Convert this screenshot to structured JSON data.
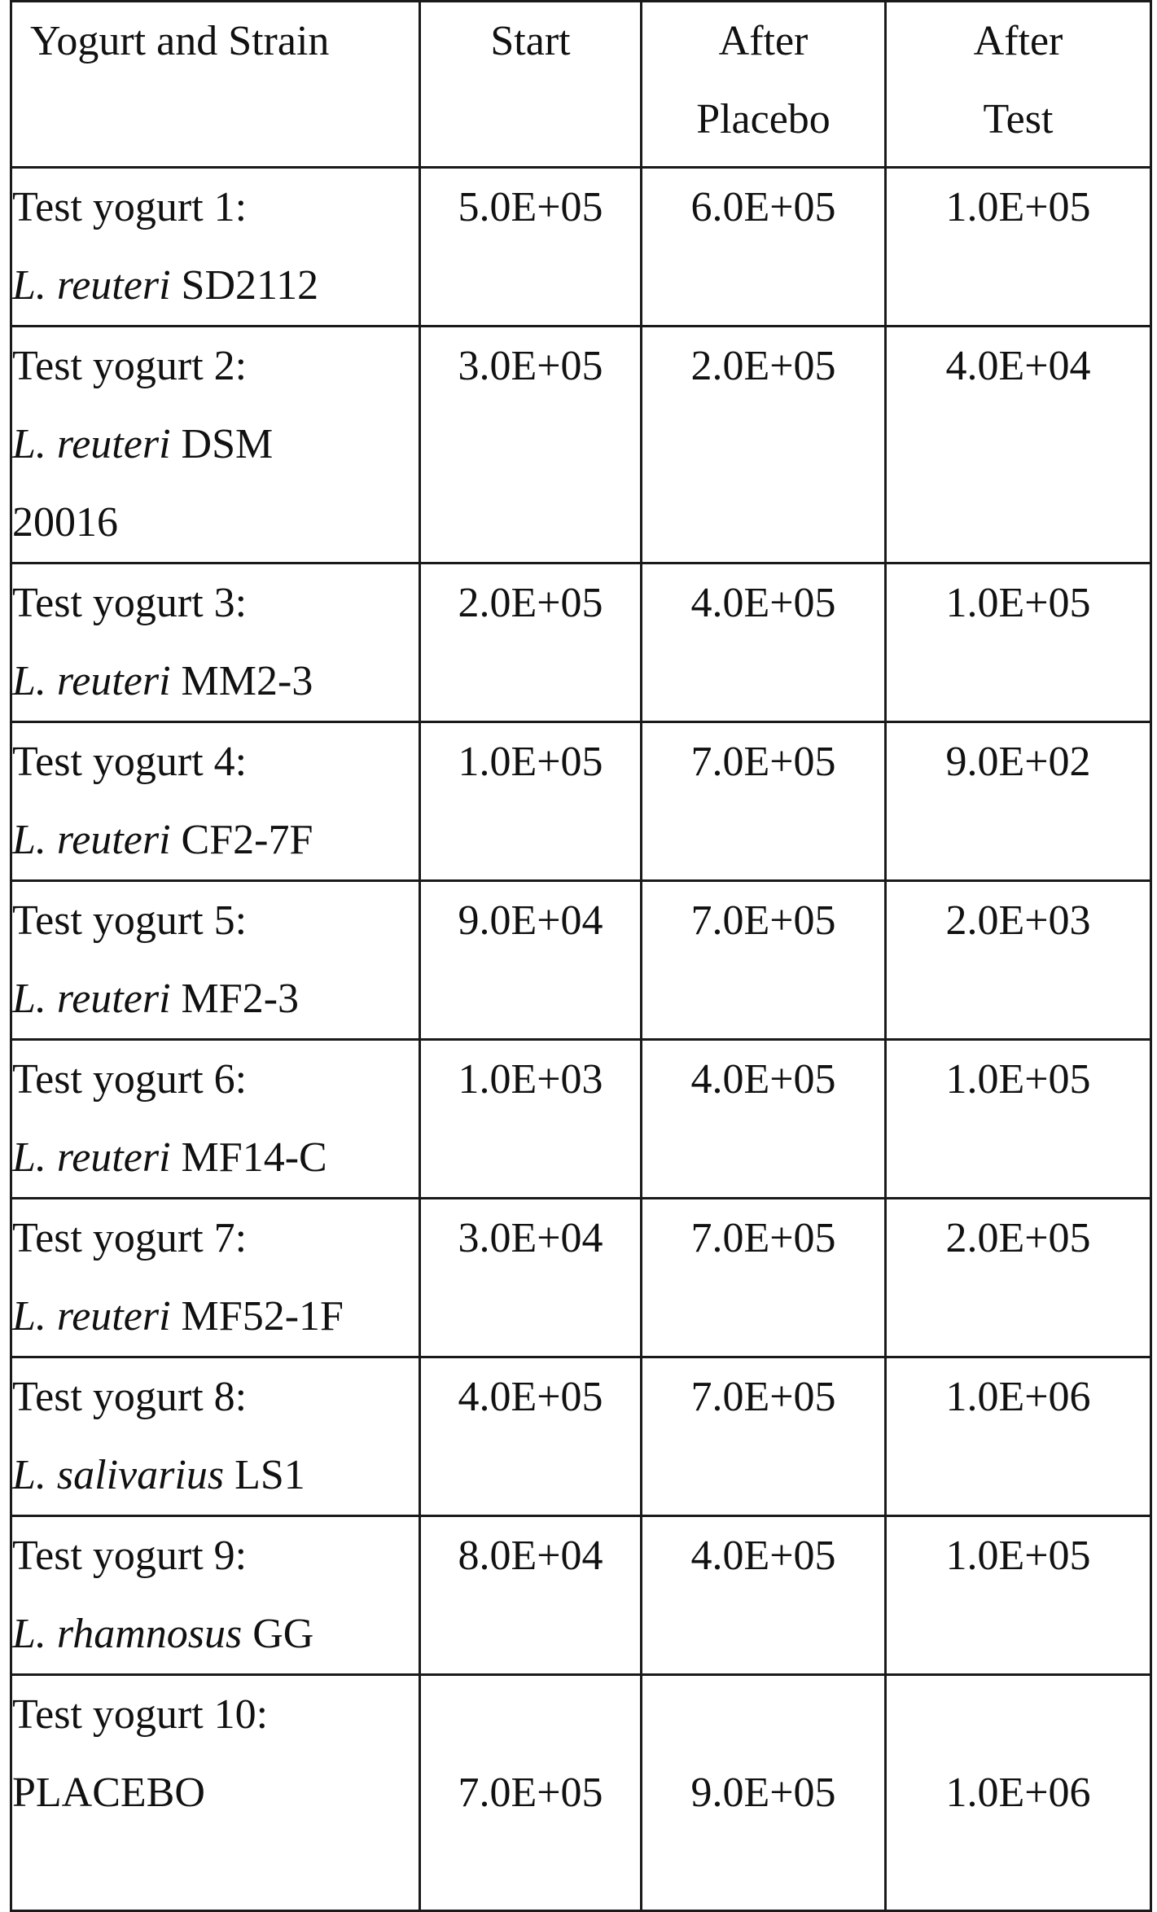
{
  "table": {
    "headers": [
      {
        "lines": [
          "Yogurt and Strain"
        ]
      },
      {
        "lines": [
          "Start"
        ]
      },
      {
        "lines": [
          "After",
          "Placebo"
        ]
      },
      {
        "lines": [
          "After",
          "Test"
        ]
      }
    ],
    "rows": [
      {
        "label": "Test yogurt 1:",
        "species": "L. reuteri",
        "strain": " SD2112",
        "strain_cont": "",
        "start": "5.0E+05",
        "after_placebo": "6.0E+05",
        "after_test": "1.0E+05"
      },
      {
        "label": "Test yogurt 2:",
        "species": "L. reuteri",
        "strain": " DSM",
        "strain_cont": "20016",
        "start": "3.0E+05",
        "after_placebo": "2.0E+05",
        "after_test": "4.0E+04"
      },
      {
        "label": "Test yogurt 3:",
        "species": "L. reuteri",
        "strain": " MM2-3",
        "strain_cont": "",
        "start": "2.0E+05",
        "after_placebo": "4.0E+05",
        "after_test": "1.0E+05"
      },
      {
        "label": "Test yogurt 4:",
        "species": "L. reuteri",
        "strain": " CF2-7F",
        "strain_cont": "",
        "start": "1.0E+05",
        "after_placebo": "7.0E+05",
        "after_test": "9.0E+02"
      },
      {
        "label": "Test yogurt 5:",
        "species": "L. reuteri",
        "strain": " MF2-3",
        "strain_cont": "",
        "start": "9.0E+04",
        "after_placebo": "7.0E+05",
        "after_test": "2.0E+03"
      },
      {
        "label": "Test yogurt 6:",
        "species": "L. reuteri",
        "strain": " MF14-C",
        "strain_cont": "",
        "start": "1.0E+03",
        "after_placebo": "4.0E+05",
        "after_test": "1.0E+05"
      },
      {
        "label": "Test yogurt 7:",
        "species": "L. reuteri",
        "strain": " MF52-1F",
        "strain_cont": "",
        "start": "3.0E+04",
        "after_placebo": "7.0E+05",
        "after_test": "2.0E+05"
      },
      {
        "label": "Test yogurt 8:",
        "species": "L. salivarius",
        "strain": " LS1",
        "strain_cont": "",
        "start": "4.0E+05",
        "after_placebo": "7.0E+05",
        "after_test": "1.0E+06"
      },
      {
        "label": "Test yogurt 9:",
        "species": "L. rhamnosus",
        "strain": " GG",
        "strain_cont": "",
        "start": "8.0E+04",
        "after_placebo": "4.0E+05",
        "after_test": "1.0E+05"
      },
      {
        "label": "Test yogurt 10:",
        "species": "",
        "strain": "PLACEBO",
        "strain_cont": "",
        "start": "7.0E+05",
        "after_placebo": "9.0E+05",
        "after_test": "1.0E+06"
      }
    ]
  }
}
